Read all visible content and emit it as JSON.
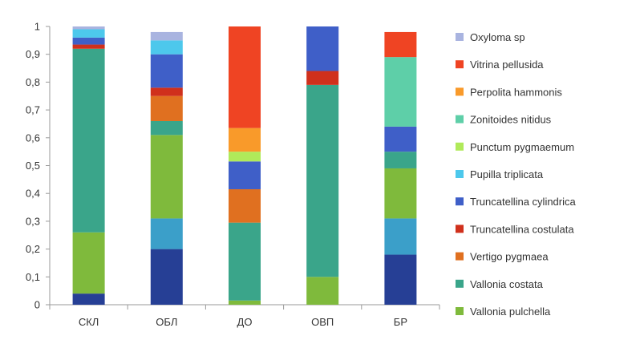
{
  "chart_data": {
    "type": "bar",
    "stacked": true,
    "title": "",
    "xlabel": "",
    "ylabel": "",
    "ylim": [
      0,
      1
    ],
    "y_ticks": [
      "0",
      "0,1",
      "0,2",
      "0,3",
      "0,4",
      "0,5",
      "0,6",
      "0,7",
      "0,8",
      "0,9",
      "1"
    ],
    "y_tick_values": [
      0,
      0.1,
      0.2,
      0.3,
      0.4,
      0.5,
      0.6,
      0.7,
      0.8,
      0.9,
      1.0
    ],
    "grid": false,
    "legend_position": "right",
    "categories": [
      "СКЛ",
      "ОБЛ",
      "ДО",
      "ОВП",
      "БР"
    ],
    "series": [
      {
        "name": "Vallonia pulchella",
        "color": "#7fba3c",
        "values": [
          0.22,
          0.3,
          0.015,
          0.1,
          0.18
        ]
      },
      {
        "name": "Vallonia costata",
        "color": "#3aa58a",
        "values": [
          0.66,
          0.05,
          0.28,
          0.69,
          0.06
        ]
      },
      {
        "name": "Vertigo pygmaea",
        "color": "#e07020",
        "values": [
          0,
          0.09,
          0.12,
          0,
          0
        ]
      },
      {
        "name": "Truncatellina costulata",
        "color": "#d0301c",
        "values": [
          0.015,
          0.03,
          0,
          0.05,
          0
        ]
      },
      {
        "name": "Truncatellina cylindrica",
        "color": "#3f5fc8",
        "values": [
          0.025,
          0.12,
          0.1,
          0.16,
          0.09
        ]
      },
      {
        "name": "Pupilla triplicata",
        "color": "#4dc8ec",
        "values": [
          0.03,
          0.05,
          0,
          0,
          0
        ]
      },
      {
        "name": "Punctum pygmaemum",
        "color": "#b0ea5a",
        "values": [
          0,
          0,
          0.035,
          0,
          0
        ]
      },
      {
        "name": "Zonitoides nitidus",
        "color": "#5ecfa8",
        "values": [
          0,
          0,
          0,
          0,
          0.25
        ]
      },
      {
        "name": "Perpolita hammonis",
        "color": "#f99a2a",
        "values": [
          0,
          0,
          0.085,
          0,
          0
        ]
      },
      {
        "name": "Vitrina pellusida",
        "color": "#ef4423",
        "values": [
          0,
          0,
          0.365,
          0,
          0.09
        ]
      },
      {
        "name": "Oxyloma sp",
        "color": "#a9b4e0",
        "values": [
          0.01,
          0.03,
          0,
          0,
          0
        ]
      }
    ],
    "base_segments": [
      {
        "color": "#263f95",
        "values": [
          0.04,
          0.2,
          0,
          0,
          0.18
        ]
      },
      {
        "color": "#3b9fc9",
        "values": [
          0,
          0.11,
          0,
          0,
          0.13
        ]
      }
    ]
  }
}
